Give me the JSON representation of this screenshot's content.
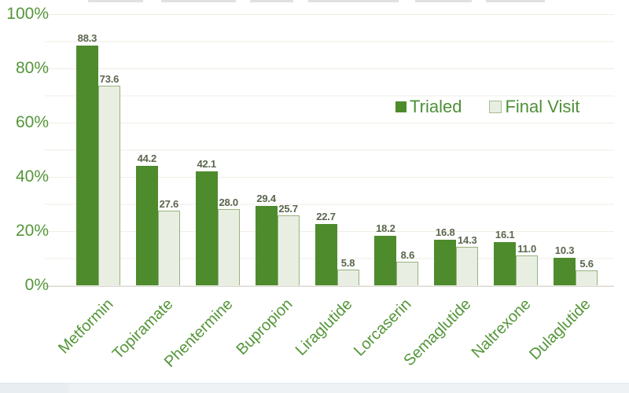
{
  "chart_data": {
    "type": "bar",
    "categories": [
      "Metformin",
      "Topiramate",
      "Phentermine",
      "Bupropion",
      "Liraglutide",
      "Lorcaserin",
      "Semaglutide",
      "Naltrexone",
      "Dulaglutide"
    ],
    "series": [
      {
        "name": "Trialed",
        "values": [
          88.3,
          44.2,
          42.1,
          29.4,
          22.7,
          18.2,
          16.8,
          16.1,
          10.3
        ],
        "color": "#4d8b2d"
      },
      {
        "name": "Final Visit",
        "values": [
          73.6,
          27.6,
          28.0,
          25.7,
          5.8,
          8.6,
          14.3,
          11.0,
          5.6
        ],
        "fill": "#e9eee3",
        "border": "#97b27c"
      }
    ],
    "title": "",
    "xlabel": "",
    "ylabel": "",
    "ylim": [
      0,
      100
    ],
    "yticks": [
      0,
      20,
      40,
      60,
      80,
      100
    ],
    "ytick_suffix": "%",
    "ytick_labels": [
      "0%",
      "20%",
      "40%",
      "60%",
      "80%",
      "100%"
    ],
    "minor_grid_step_percent": 10,
    "grid": "horizontal",
    "value_labels": "one_decimal",
    "x_label_rotation_deg": 45,
    "legend_position": "center-right"
  },
  "colors": {
    "bar_trialed": "#4d8b2d",
    "bar_final_fill": "#e9eee3",
    "bar_final_border": "#97b27c",
    "axis_text_green": "#549639",
    "legend_text_green": "#4e9038",
    "value_label": "#5a664d",
    "gridline": "#f0ede3",
    "baseline": "#d8d8d4",
    "background": "#ffffff",
    "bottom_strip": "#eef2f5"
  }
}
